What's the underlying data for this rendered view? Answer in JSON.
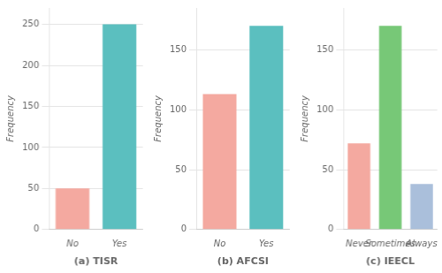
{
  "chart_data": [
    {
      "type": "bar",
      "xlabel": "(a) TISR",
      "ylabel": "Frequency",
      "categories": [
        "No",
        "Yes"
      ],
      "values": [
        50,
        250
      ],
      "colors": [
        "#F4A9A0",
        "#5BBFBF"
      ],
      "ylim": [
        0,
        270
      ],
      "yticks": [
        0,
        50,
        100,
        150,
        200,
        250
      ],
      "grid": true
    },
    {
      "type": "bar",
      "xlabel": "(b) AFCSI",
      "ylabel": "Frequency",
      "categories": [
        "No",
        "Yes"
      ],
      "values": [
        113,
        170
      ],
      "colors": [
        "#F4A9A0",
        "#5BBFBF"
      ],
      "ylim": [
        0,
        185
      ],
      "yticks": [
        0,
        50,
        100,
        150
      ],
      "grid": true
    },
    {
      "type": "bar",
      "xlabel": "(c) IEECL",
      "ylabel": "Frequency",
      "categories": [
        "Never",
        "Sometimes",
        "Always"
      ],
      "values": [
        72,
        170,
        38
      ],
      "colors": [
        "#F4A9A0",
        "#77C877",
        "#AABFDB"
      ],
      "ylim": [
        0,
        185
      ],
      "yticks": [
        0,
        50,
        100,
        150
      ],
      "grid": true
    }
  ]
}
